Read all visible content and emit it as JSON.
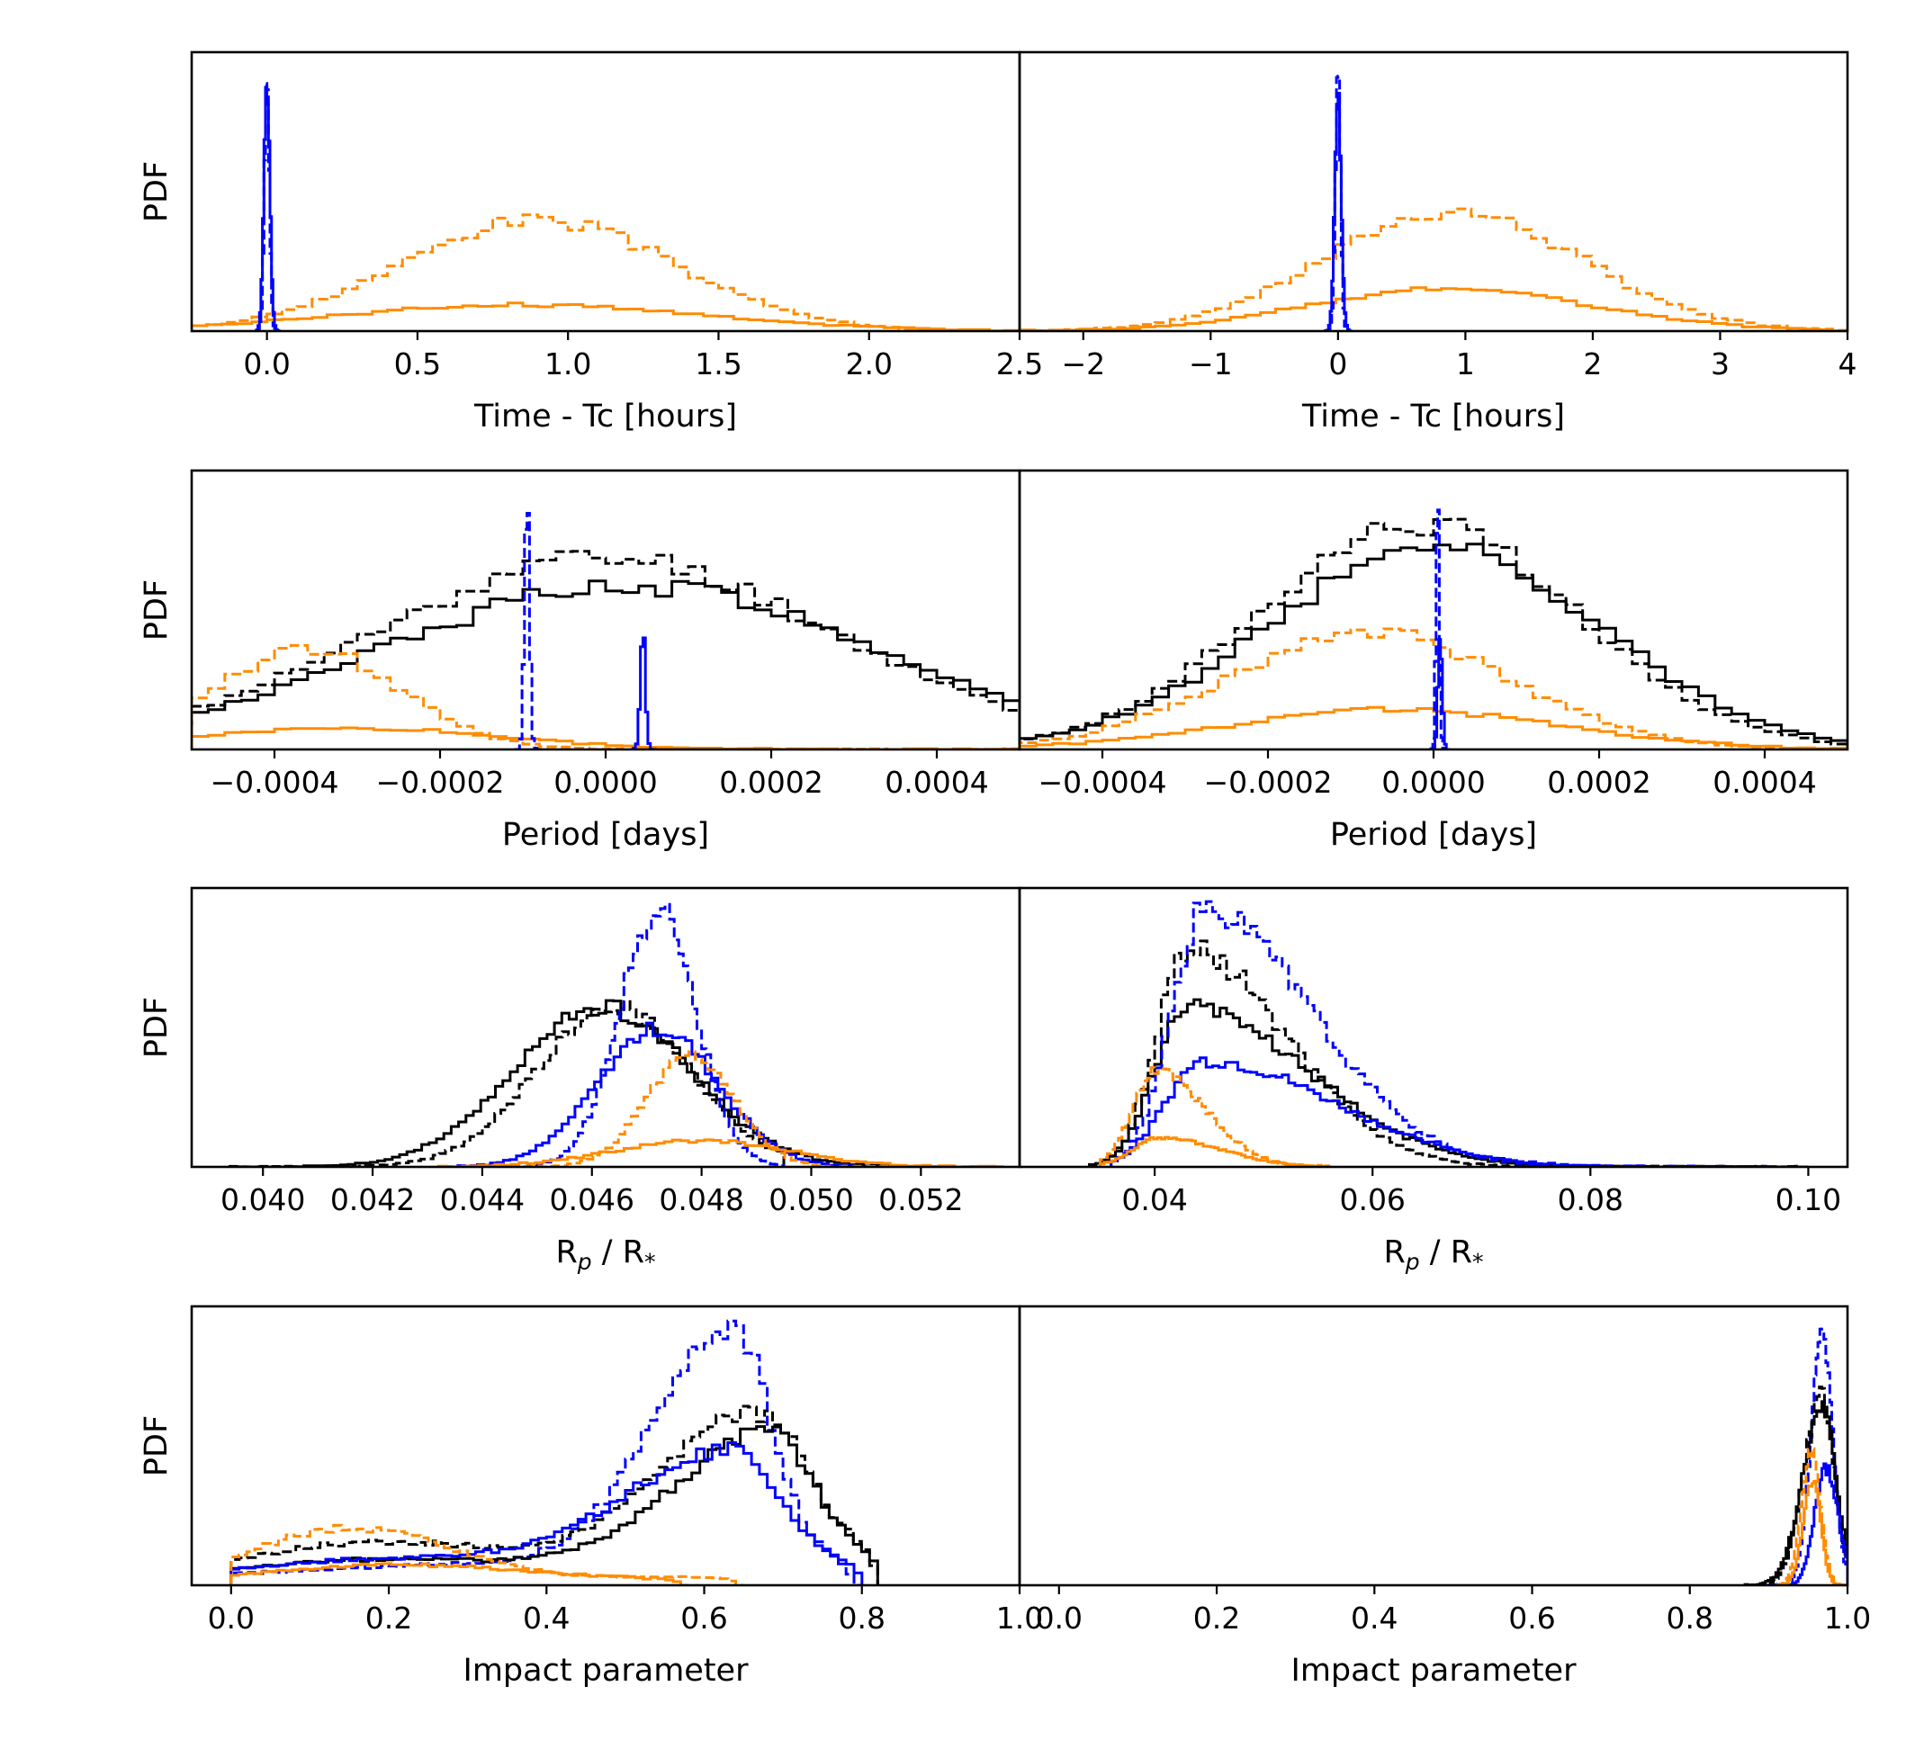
{
  "figure": {
    "ylabel": "PDF",
    "colors": {
      "black": "#000000",
      "orange": "#ff8c00",
      "blue": "#0000ff"
    },
    "line_styles": {
      "solid": "solid",
      "dashed": "dashed"
    }
  },
  "chart_data": [
    {
      "id": "p00",
      "type": "histogram",
      "xlabel": "Time - Tc [hours]",
      "ylabel": "PDF",
      "xlim": [
        -0.25,
        2.5
      ],
      "xticks": [
        0.0,
        0.5,
        1.0,
        1.5,
        2.0,
        2.5
      ],
      "xtick_labels": [
        "0.0",
        "0.5",
        "1.0",
        "1.5",
        "2.0",
        "2.5"
      ],
      "series": [
        {
          "name": "orange dashed",
          "color": "orange",
          "style": "dashed",
          "kind": "gauss",
          "mu": 0.9,
          "sigma": 0.45,
          "peak": 0.42,
          "xrange": [
            -0.25,
            2.5
          ],
          "bins": 55,
          "seed": 3
        },
        {
          "name": "orange solid",
          "color": "orange",
          "style": "solid",
          "kind": "gauss",
          "mu": 0.85,
          "sigma": 0.6,
          "peak": 0.1,
          "xrange": [
            -0.25,
            2.5
          ],
          "bins": 55,
          "seed": 4
        },
        {
          "name": "blue dashed",
          "color": "blue",
          "style": "dashed",
          "kind": "gauss",
          "mu": 0.0,
          "sigma": 0.008,
          "peak": 0.96,
          "xrange": [
            -0.04,
            0.04
          ],
          "bins": 16,
          "seed": 5
        },
        {
          "name": "blue solid",
          "color": "blue",
          "style": "solid",
          "kind": "gauss",
          "mu": 0.0,
          "sigma": 0.01,
          "peak": 0.9,
          "xrange": [
            -0.04,
            0.04
          ],
          "bins": 16,
          "seed": 6
        }
      ]
    },
    {
      "id": "p01",
      "type": "histogram",
      "xlabel": "Time - Tc [hours]",
      "ylabel": "",
      "xlim": [
        -2.5,
        4.0
      ],
      "xticks": [
        -2,
        -1,
        0,
        1,
        2,
        3,
        4
      ],
      "xtick_labels": [
        "−2",
        "−1",
        "0",
        "1",
        "2",
        "3",
        "4"
      ],
      "series": [
        {
          "name": "orange dashed",
          "color": "orange",
          "style": "dashed",
          "kind": "gauss",
          "mu": 0.9,
          "sigma": 1.0,
          "peak": 0.45,
          "xrange": [
            -2.5,
            4.0
          ],
          "bins": 55,
          "seed": 7
        },
        {
          "name": "orange solid",
          "color": "orange",
          "style": "solid",
          "kind": "gauss",
          "mu": 0.9,
          "sigma": 1.1,
          "peak": 0.16,
          "xrange": [
            -2.5,
            4.0
          ],
          "bins": 55,
          "seed": 8
        },
        {
          "name": "blue dashed",
          "color": "blue",
          "style": "dashed",
          "kind": "gauss",
          "mu": 0.0,
          "sigma": 0.02,
          "peak": 0.96,
          "xrange": [
            -0.1,
            0.1
          ],
          "bins": 16,
          "seed": 9
        },
        {
          "name": "blue solid",
          "color": "blue",
          "style": "solid",
          "kind": "gauss",
          "mu": 0.0,
          "sigma": 0.025,
          "peak": 0.9,
          "xrange": [
            -0.1,
            0.1
          ],
          "bins": 16,
          "seed": 10
        }
      ]
    },
    {
      "id": "p10",
      "type": "histogram",
      "xlabel": "Period [days]",
      "ylabel": "PDF",
      "xlim": [
        -0.0005,
        0.0005
      ],
      "xticks": [
        -0.0004,
        -0.0002,
        0.0,
        0.0002,
        0.0004
      ],
      "xtick_labels": [
        "−0.0004",
        "−0.0002",
        "0.0000",
        "0.0002",
        "0.0004"
      ],
      "series": [
        {
          "name": "black dashed",
          "color": "black",
          "style": "dashed",
          "kind": "gauss",
          "mu": 0.0,
          "sigma": 0.00028,
          "peak": 0.72,
          "xrange": [
            -0.0005,
            0.0005
          ],
          "bins": 50,
          "seed": 11
        },
        {
          "name": "black solid",
          "color": "black",
          "style": "solid",
          "kind": "gauss",
          "mu": 3e-05,
          "sigma": 0.0003,
          "peak": 0.62,
          "xrange": [
            -0.0005,
            0.0005
          ],
          "bins": 50,
          "seed": 12
        },
        {
          "name": "orange dashed",
          "color": "orange",
          "style": "dashed",
          "kind": "gauss",
          "mu": -0.00036,
          "sigma": 0.00011,
          "peak": 0.38,
          "xrange": [
            -0.0005,
            0.0005
          ],
          "bins": 50,
          "seed": 13
        },
        {
          "name": "orange solid",
          "color": "orange",
          "style": "solid",
          "kind": "gauss",
          "mu": -0.00031,
          "sigma": 0.00018,
          "peak": 0.08,
          "xrange": [
            -0.0005,
            0.0005
          ],
          "bins": 50,
          "seed": 14
        },
        {
          "name": "blue dashed",
          "color": "blue",
          "style": "dashed",
          "kind": "gauss",
          "mu": -9.5e-05,
          "sigma": 3e-06,
          "peak": 0.96,
          "xrange": [
            -0.00011,
            -8e-05
          ],
          "bins": 10,
          "seed": 15
        },
        {
          "name": "blue solid",
          "color": "blue",
          "style": "solid",
          "kind": "gauss",
          "mu": 4.5e-05,
          "sigma": 3e-06,
          "peak": 0.45,
          "xrange": [
            3e-05,
            6e-05
          ],
          "bins": 10,
          "seed": 16
        }
      ]
    },
    {
      "id": "p11",
      "type": "histogram",
      "xlabel": "Period [days]",
      "ylabel": "",
      "xlim": [
        -0.0005,
        0.0005
      ],
      "xticks": [
        -0.0004,
        -0.0002,
        0.0,
        0.0002,
        0.0004
      ],
      "xtick_labels": [
        "−0.0004",
        "−0.0002",
        "0.0000",
        "0.0002",
        "0.0004"
      ],
      "series": [
        {
          "name": "black dashed",
          "color": "black",
          "style": "dashed",
          "kind": "gauss",
          "mu": -2e-05,
          "sigma": 0.00019,
          "peak": 0.85,
          "xrange": [
            -0.0005,
            0.0005
          ],
          "bins": 50,
          "seed": 17
        },
        {
          "name": "black solid",
          "color": "black",
          "style": "solid",
          "kind": "gauss",
          "mu": 0.0,
          "sigma": 0.0002,
          "peak": 0.76,
          "xrange": [
            -0.0005,
            0.0005
          ],
          "bins": 50,
          "seed": 18
        },
        {
          "name": "orange dashed",
          "color": "orange",
          "style": "dashed",
          "kind": "gauss",
          "mu": -8e-05,
          "sigma": 0.00017,
          "peak": 0.44,
          "xrange": [
            -0.0005,
            0.0005
          ],
          "bins": 50,
          "seed": 19
        },
        {
          "name": "orange solid",
          "color": "orange",
          "style": "solid",
          "kind": "gauss",
          "mu": -5e-05,
          "sigma": 0.0002,
          "peak": 0.15,
          "xrange": [
            -0.0005,
            0.0005
          ],
          "bins": 50,
          "seed": 20
        },
        {
          "name": "blue dashed",
          "color": "blue",
          "style": "dashed",
          "kind": "gauss",
          "mu": 5e-06,
          "sigma": 2e-06,
          "peak": 0.96,
          "xrange": [
            -5e-06,
            1.5e-05
          ],
          "bins": 10,
          "seed": 21
        },
        {
          "name": "blue solid",
          "color": "blue",
          "style": "solid",
          "kind": "gauss",
          "mu": 8e-06,
          "sigma": 2.5e-06,
          "peak": 0.45,
          "xrange": [
            -3e-06,
            2e-05
          ],
          "bins": 10,
          "seed": 22
        }
      ]
    },
    {
      "id": "p20",
      "type": "histogram",
      "xlabel": "R_p / R_*",
      "ylabel": "PDF",
      "xlim": [
        0.0387,
        0.0538
      ],
      "xticks": [
        0.04,
        0.042,
        0.044,
        0.046,
        0.048,
        0.05,
        0.052
      ],
      "xtick_labels": [
        "0.040",
        "0.042",
        "0.044",
        "0.046",
        "0.048",
        "0.050",
        "0.052"
      ],
      "series": [
        {
          "name": "black dashed",
          "color": "black",
          "style": "dashed",
          "kind": "gauss",
          "mu": 0.0464,
          "sigma": 0.0014,
          "peak": 0.6,
          "xrange": [
            0.0394,
            0.0495
          ],
          "bins": 90,
          "seed": 23
        },
        {
          "name": "black solid",
          "color": "black",
          "style": "solid",
          "kind": "gauss",
          "mu": 0.0462,
          "sigma": 0.0016,
          "peak": 0.6,
          "xrange": [
            0.0394,
            0.0515
          ],
          "bins": 90,
          "seed": 24
        },
        {
          "name": "blue dashed",
          "color": "blue",
          "style": "dashed",
          "kind": "gauss",
          "mu": 0.0472,
          "sigma": 0.0007,
          "peak": 0.96,
          "xrange": [
            0.0445,
            0.0495
          ],
          "bins": 60,
          "seed": 25
        },
        {
          "name": "blue solid",
          "color": "blue",
          "style": "solid",
          "kind": "gauss",
          "mu": 0.0472,
          "sigma": 0.0011,
          "peak": 0.52,
          "xrange": [
            0.0432,
            0.0515
          ],
          "bins": 70,
          "seed": 26
        },
        {
          "name": "orange dashed",
          "color": "orange",
          "style": "dashed",
          "kind": "gauss",
          "mu": 0.0478,
          "sigma": 0.0008,
          "peak": 0.42,
          "xrange": [
            0.0445,
            0.0515
          ],
          "bins": 60,
          "seed": 27
        },
        {
          "name": "orange solid",
          "color": "orange",
          "style": "solid",
          "kind": "gauss",
          "mu": 0.048,
          "sigma": 0.0016,
          "peak": 0.1,
          "xrange": [
            0.0432,
            0.0535
          ],
          "bins": 70,
          "seed": 28
        }
      ]
    },
    {
      "id": "p21",
      "type": "histogram",
      "xlabel": "R_p / R_*",
      "ylabel": "",
      "xlim": [
        0.0276,
        0.1036
      ],
      "xticks": [
        0.04,
        0.06,
        0.08,
        0.1
      ],
      "xtick_labels": [
        "0.04",
        "0.06",
        "0.08",
        "0.10"
      ],
      "series": [
        {
          "name": "black dashed",
          "color": "black",
          "style": "dashed",
          "kind": "skew",
          "mode": 0.043,
          "sl": 0.0028,
          "sr": 0.009,
          "peak": 0.82,
          "xrange": [
            0.034,
            0.1
          ],
          "bins": 110,
          "seed": 29
        },
        {
          "name": "black solid",
          "color": "black",
          "style": "solid",
          "kind": "skew",
          "mode": 0.043,
          "sl": 0.003,
          "sr": 0.011,
          "peak": 0.6,
          "xrange": [
            0.034,
            0.1
          ],
          "bins": 110,
          "seed": 30
        },
        {
          "name": "blue dashed",
          "color": "blue",
          "style": "dashed",
          "kind": "skew",
          "mode": 0.0445,
          "sl": 0.003,
          "sr": 0.01,
          "peak": 0.96,
          "xrange": [
            0.036,
            0.1
          ],
          "bins": 110,
          "seed": 31
        },
        {
          "name": "blue solid",
          "color": "blue",
          "style": "solid",
          "kind": "skew",
          "mode": 0.0445,
          "sl": 0.0035,
          "sr": 0.012,
          "peak": 0.4,
          "xrange": [
            0.036,
            0.1
          ],
          "bins": 110,
          "seed": 32
        },
        {
          "name": "orange dashed",
          "color": "orange",
          "style": "dashed",
          "kind": "skew",
          "mode": 0.0402,
          "sl": 0.0022,
          "sr": 0.0045,
          "peak": 0.36,
          "xrange": [
            0.035,
            0.055
          ],
          "bins": 60,
          "seed": 33
        },
        {
          "name": "orange solid",
          "color": "orange",
          "style": "solid",
          "kind": "skew",
          "mode": 0.0405,
          "sl": 0.0025,
          "sr": 0.0055,
          "peak": 0.11,
          "xrange": [
            0.035,
            0.056
          ],
          "bins": 60,
          "seed": 34
        }
      ]
    },
    {
      "id": "p30",
      "type": "histogram",
      "xlabel": "Impact parameter",
      "ylabel": "PDF",
      "xlim": [
        -0.05,
        1.0
      ],
      "xticks": [
        0.0,
        0.2,
        0.4,
        0.6,
        0.8,
        1.0
      ],
      "xtick_labels": [
        "0.0",
        "0.2",
        "0.4",
        "0.6",
        "0.8",
        "1.0"
      ],
      "series": [
        {
          "name": "blue dashed",
          "color": "blue",
          "style": "dashed",
          "kind": "impact",
          "mu": 0.635,
          "sl": 0.1,
          "sr": 0.05,
          "peak": 0.88,
          "base": 0.08,
          "bump": 0.0,
          "bump_mu": 0.15,
          "bump_s": 0.1,
          "cut": 0.77,
          "xrange": [
            0.0,
            0.8
          ],
          "bins": 80,
          "seed": 35
        },
        {
          "name": "black dashed",
          "color": "black",
          "style": "dashed",
          "kind": "impact",
          "mu": 0.67,
          "sl": 0.12,
          "sr": 0.06,
          "peak": 0.54,
          "base": 0.11,
          "bump": 0.07,
          "bump_mu": 0.15,
          "bump_s": 0.12,
          "cut": 0.8,
          "xrange": [
            0.0,
            0.82
          ],
          "bins": 80,
          "seed": 36
        },
        {
          "name": "black solid",
          "color": "black",
          "style": "solid",
          "kind": "impact",
          "mu": 0.685,
          "sl": 0.12,
          "sr": 0.055,
          "peak": 0.5,
          "base": 0.08,
          "bump": 0.03,
          "bump_mu": 0.15,
          "bump_s": 0.12,
          "cut": 0.81,
          "xrange": [
            0.0,
            0.82
          ],
          "bins": 80,
          "seed": 37
        },
        {
          "name": "blue solid",
          "color": "blue",
          "style": "solid",
          "kind": "impact",
          "mu": 0.64,
          "sl": 0.14,
          "sr": 0.055,
          "peak": 0.43,
          "base": 0.08,
          "bump": 0.03,
          "bump_mu": 0.15,
          "bump_s": 0.12,
          "cut": 0.78,
          "xrange": [
            0.0,
            0.8
          ],
          "bins": 80,
          "seed": 38
        },
        {
          "name": "orange dashed",
          "color": "orange",
          "style": "dashed",
          "kind": "impact",
          "mu": 0.15,
          "sl": 0.13,
          "sr": 0.12,
          "peak": 0.0,
          "base": 0.03,
          "bump": 0.19,
          "bump_mu": 0.15,
          "bump_s": 0.12,
          "cut": 0.62,
          "xrange": [
            0.0,
            0.65
          ],
          "bins": 65,
          "seed": 39
        },
        {
          "name": "orange solid",
          "color": "orange",
          "style": "solid",
          "kind": "impact",
          "mu": 0.2,
          "sl": 0.13,
          "sr": 0.12,
          "peak": 0.0,
          "base": 0.02,
          "bump": 0.06,
          "bump_mu": 0.2,
          "bump_s": 0.16,
          "cut": 0.55,
          "xrange": [
            0.0,
            0.58
          ],
          "bins": 60,
          "seed": 40
        }
      ]
    },
    {
      "id": "p31",
      "type": "histogram",
      "xlabel": "Impact parameter",
      "ylabel": "",
      "xlim": [
        -0.05,
        1.0
      ],
      "xticks": [
        0.0,
        0.2,
        0.4,
        0.6,
        0.8,
        1.0
      ],
      "xtick_labels": [
        "0.0",
        "0.2",
        "0.4",
        "0.6",
        "0.8",
        "1.0"
      ],
      "series": [
        {
          "name": "blue dashed",
          "color": "blue",
          "style": "dashed",
          "kind": "skew",
          "mode": 0.968,
          "sl": 0.014,
          "sr": 0.013,
          "peak": 0.96,
          "xrange": [
            0.9,
            1.0
          ],
          "bins": 40,
          "seed": 41
        },
        {
          "name": "black dashed",
          "color": "black",
          "style": "dashed",
          "kind": "skew",
          "mode": 0.967,
          "sl": 0.022,
          "sr": 0.016,
          "peak": 0.72,
          "xrange": [
            0.87,
            1.0
          ],
          "bins": 40,
          "seed": 42
        },
        {
          "name": "black solid",
          "color": "black",
          "style": "solid",
          "kind": "skew",
          "mode": 0.968,
          "sl": 0.025,
          "sr": 0.018,
          "peak": 0.66,
          "xrange": [
            0.87,
            1.0
          ],
          "bins": 40,
          "seed": 43
        },
        {
          "name": "blue solid",
          "color": "blue",
          "style": "solid",
          "kind": "skew",
          "mode": 0.972,
          "sl": 0.014,
          "sr": 0.016,
          "peak": 0.44,
          "xrange": [
            0.9,
            1.0
          ],
          "bins": 40,
          "seed": 44
        },
        {
          "name": "orange dashed",
          "color": "orange",
          "style": "dashed",
          "kind": "skew",
          "mode": 0.955,
          "sl": 0.013,
          "sr": 0.011,
          "peak": 0.5,
          "xrange": [
            0.91,
            1.0
          ],
          "bins": 36,
          "seed": 45
        },
        {
          "name": "orange solid",
          "color": "orange",
          "style": "solid",
          "kind": "skew",
          "mode": 0.956,
          "sl": 0.012,
          "sr": 0.01,
          "peak": 0.4,
          "xrange": [
            0.91,
            1.0
          ],
          "bins": 36,
          "seed": 46
        }
      ]
    }
  ]
}
